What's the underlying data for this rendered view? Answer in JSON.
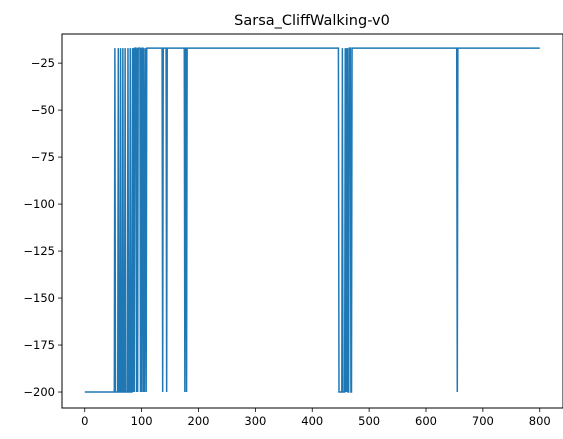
{
  "chart_data": {
    "type": "line",
    "title": "Sarsa_CliffWalking-v0",
    "xlabel": "",
    "ylabel": "",
    "xlim": [
      -40,
      840
    ],
    "ylim": [
      -208.5,
      -9.5
    ],
    "xticks": [
      0,
      100,
      200,
      300,
      400,
      500,
      600,
      700,
      800
    ],
    "xtick_labels": [
      "0",
      "100",
      "200",
      "300",
      "400",
      "500",
      "600",
      "700",
      "800"
    ],
    "yticks": [
      -25,
      -50,
      -75,
      -100,
      -125,
      -150,
      -175,
      -200
    ],
    "ytick_labels": [
      "−25",
      "−50",
      "−75",
      "−100",
      "−125",
      "−150",
      "−175",
      "−200"
    ],
    "grid": false,
    "line_color": "#1f77b4",
    "series": [
      {
        "name": "",
        "x": [
          0,
          52,
          53,
          54,
          58,
          59,
          60,
          62,
          63,
          64,
          66,
          67,
          68,
          70,
          71,
          72,
          75,
          76,
          77,
          79,
          80,
          81,
          83,
          84,
          85,
          86,
          87,
          88,
          90,
          91,
          92,
          93,
          94,
          95,
          97,
          98,
          99,
          100,
          101,
          102,
          103,
          104,
          105,
          107,
          108,
          109,
          110,
          136,
          137,
          138,
          143,
          144,
          145,
          175,
          176,
          177,
          178,
          179,
          180,
          446,
          447,
          448,
          449,
          452,
          453,
          454,
          457,
          458,
          459,
          460,
          461,
          462,
          463,
          464,
          465,
          467,
          468,
          469,
          470,
          654,
          655,
          656,
          800
        ],
        "y": [
          -200,
          -200,
          -17,
          -200,
          -200,
          -17,
          -200,
          -200,
          -17,
          -200,
          -200,
          -17,
          -200,
          -200,
          -17,
          -200,
          -200,
          -17,
          -200,
          -200,
          -17,
          -200,
          -200,
          -17,
          -200,
          -17,
          -200,
          -17,
          -17,
          -200,
          -17,
          -200,
          -17,
          -17,
          -17,
          -200,
          -17,
          -200,
          -17,
          -17,
          -200,
          -17,
          -200,
          -17,
          -200,
          -17,
          -17,
          -17,
          -200,
          -17,
          -17,
          -200,
          -17,
          -17,
          -200,
          -17,
          -17,
          -200,
          -17,
          -17,
          -200,
          -200,
          -200,
          -200,
          -17,
          -200,
          -200,
          -17,
          -200,
          -17,
          -200,
          -17,
          -200,
          -200,
          -17,
          -17,
          -200,
          -200,
          -17,
          -17,
          -200,
          -17,
          -17
        ]
      }
    ]
  }
}
